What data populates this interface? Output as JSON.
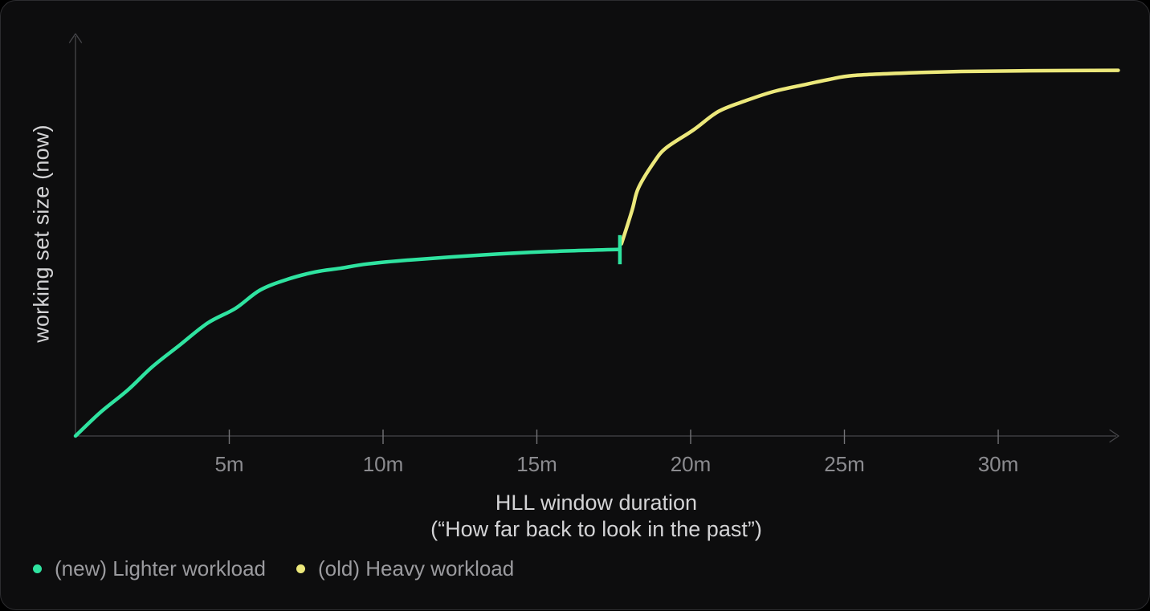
{
  "figure": {
    "y_axis_label": "working set size (now)",
    "x_axis_title": "HLL window duration",
    "x_axis_subtitle": "(“How far back to look in the past”)"
  },
  "legend": {
    "items": [
      {
        "label": "(new) Lighter workload",
        "color": "#2fe3a0"
      },
      {
        "label": "(old) Heavy workload",
        "color": "#ece87b"
      }
    ]
  },
  "chart_data": {
    "type": "line",
    "title": "",
    "xlabel": "HLL window duration (“How far back to look in the past”)",
    "ylabel": "working set size (now)",
    "x_unit": "minutes",
    "y_unit": "relative working-set size (axis unlabeled; values normalized 0–1)",
    "x_range_minutes": [
      0,
      34
    ],
    "x_ticks": [
      {
        "minutes": 5,
        "label": "5m"
      },
      {
        "minutes": 10,
        "label": "10m"
      },
      {
        "minutes": 15,
        "label": "15m"
      },
      {
        "minutes": 20,
        "label": "20m"
      },
      {
        "minutes": 25,
        "label": "25m"
      },
      {
        "minutes": 30,
        "label": "30m"
      }
    ],
    "grid": false,
    "legend_position": "bottom-left",
    "series": [
      {
        "name": "(new) Lighter workload",
        "color": "#2fe3a0",
        "points": [
          [
            0,
            0
          ],
          [
            0.8,
            0.064
          ],
          [
            1.7,
            0.126
          ],
          [
            2.5,
            0.19
          ],
          [
            3.4,
            0.25
          ],
          [
            4.3,
            0.31
          ],
          [
            5.2,
            0.35
          ],
          [
            6.0,
            0.4
          ],
          [
            6.9,
            0.43
          ],
          [
            7.8,
            0.45
          ],
          [
            8.6,
            0.46
          ],
          [
            9.5,
            0.472
          ],
          [
            10.9,
            0.483
          ],
          [
            13.3,
            0.497
          ],
          [
            15.4,
            0.506
          ],
          [
            17.7,
            0.512
          ]
        ]
      },
      {
        "name": "(old) Heavy workload",
        "color": "#ece87b",
        "points": [
          [
            17.75,
            0.527
          ],
          [
            18.1,
            0.62
          ],
          [
            18.3,
            0.68
          ],
          [
            18.8,
            0.75
          ],
          [
            19.2,
            0.79
          ],
          [
            20.1,
            0.84
          ],
          [
            20.9,
            0.89
          ],
          [
            21.8,
            0.92
          ],
          [
            22.7,
            0.945
          ],
          [
            23.6,
            0.962
          ],
          [
            24.5,
            0.978
          ],
          [
            25.3,
            0.989
          ],
          [
            27.1,
            0.996
          ],
          [
            28.8,
            1.0
          ],
          [
            31.0,
            1.002
          ],
          [
            33.9,
            1.003
          ]
        ]
      }
    ],
    "transition_marker": {
      "x_minutes": 17.7,
      "v_from": 0.471,
      "v_to": 0.551,
      "color": "#2fe3a0"
    }
  }
}
